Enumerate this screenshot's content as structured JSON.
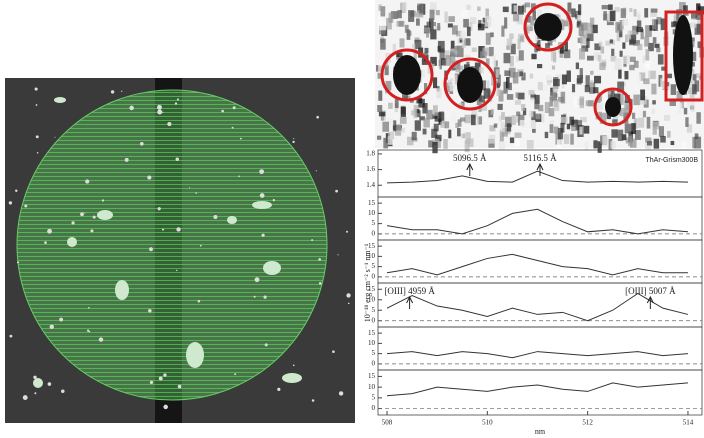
{
  "figure": {
    "ylabel": "10⁻¹⁸ erg cm⁻² s⁻¹ nm⁻¹",
    "xlabel": "nm"
  },
  "chart_data": [
    {
      "type": "line",
      "x": [
        508,
        508.5,
        509,
        509.5,
        510,
        510.5,
        511,
        511.5,
        512,
        512.5,
        513,
        513.5,
        514
      ],
      "series": [
        {
          "color": "#333",
          "values": [
            1.43,
            1.44,
            1.46,
            1.52,
            1.45,
            1.44,
            1.58,
            1.46,
            1.44,
            1.45,
            1.44,
            1.45,
            1.44
          ]
        }
      ],
      "ylim": [
        1.25,
        1.85
      ],
      "yticks": [
        1.4,
        1.6,
        1.8
      ],
      "annotations": [
        {
          "label": "5096.5 Å",
          "x": 509.65
        },
        {
          "label": "5116.5 Å",
          "x": 511.05
        }
      ],
      "note": "ThAr-Grism300B"
    },
    {
      "type": "line",
      "x": [
        508,
        508.5,
        509,
        509.5,
        510,
        510.5,
        511,
        511.5,
        512,
        512.5,
        513,
        513.5,
        514
      ],
      "series": [
        {
          "color": "#333",
          "values": [
            4,
            2,
            2,
            0,
            4,
            10,
            12,
            6,
            1,
            2,
            0,
            2,
            1
          ]
        }
      ],
      "ylim": [
        -3,
        18
      ],
      "yticks": [
        0,
        5,
        10,
        15
      ]
    },
    {
      "type": "line",
      "x": [
        508,
        508.5,
        509,
        509.5,
        510,
        510.5,
        511,
        511.5,
        512,
        512.5,
        513,
        513.5,
        514
      ],
      "series": [
        {
          "color": "#333",
          "values": [
            2,
            4,
            1,
            5,
            9,
            11,
            8,
            5,
            4,
            1,
            4,
            2,
            2
          ]
        }
      ],
      "ylim": [
        -3,
        18
      ],
      "yticks": [
        0,
        5,
        10,
        15
      ]
    },
    {
      "type": "line",
      "x": [
        508,
        508.5,
        509,
        509.5,
        510,
        510.5,
        511,
        511.5,
        512,
        512.5,
        513,
        513.5,
        514
      ],
      "series": [
        {
          "color": "#333",
          "values": [
            6,
            12,
            7,
            5,
            2,
            6,
            3,
            4,
            0,
            5,
            13,
            6,
            3
          ]
        }
      ],
      "ylim": [
        -3,
        18
      ],
      "yticks": [
        0,
        5,
        10,
        15
      ],
      "annotations": [
        {
          "label": "[OIII] 4959 Å",
          "x": 508.45
        },
        {
          "label": "[OIII] 5007 Å",
          "x": 513.25
        }
      ]
    },
    {
      "type": "line",
      "x": [
        508,
        508.5,
        509,
        509.5,
        510,
        510.5,
        511,
        511.5,
        512,
        512.5,
        513,
        513.5,
        514
      ],
      "series": [
        {
          "color": "#333",
          "values": [
            5,
            6,
            4,
            6,
            5,
            3,
            6,
            5,
            4,
            5,
            6,
            4,
            5
          ]
        }
      ],
      "ylim": [
        -3,
        18
      ],
      "yticks": [
        0,
        5,
        10,
        15
      ]
    },
    {
      "type": "line",
      "x": [
        508,
        508.5,
        509,
        509.5,
        510,
        510.5,
        511,
        511.5,
        512,
        512.5,
        513,
        513.5,
        514
      ],
      "series": [
        {
          "color": "#333",
          "values": [
            6,
            7,
            10,
            9,
            8,
            10,
            11,
            9,
            8,
            12,
            10,
            11,
            12
          ]
        }
      ],
      "ylim": [
        -3,
        18
      ],
      "yticks": [
        0,
        5,
        10,
        15
      ],
      "xticks": [
        508,
        510,
        512,
        514
      ]
    }
  ]
}
